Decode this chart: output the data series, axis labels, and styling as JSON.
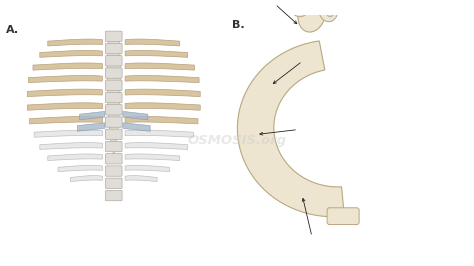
{
  "background_color": "#ffffff",
  "label_A": "A.",
  "label_B": "B.",
  "label_fontsize": 8,
  "watermark": "OSMOSIS.org",
  "watermark_color": "#cccccc",
  "watermark_alpha": 0.45,
  "bone_tan": "#d9c4a0",
  "bone_tan_edge": "#b8a080",
  "bone_white": "#e8e8e8",
  "bone_white_edge": "#c0c0c0",
  "bone_light": "#ede0c8",
  "bone_light_edge": "#c8b090",
  "spine_fill": "#e0ddd8",
  "spine_edge": "#b0aaa0",
  "sternum_fill": "#e2ddd6",
  "sternum_edge": "#b5b0a8",
  "cart_blue": "#aabccc",
  "cart_blue_edge": "#8090a8",
  "ann_color": "#222222",
  "rib_B_fill": "#ede5d0",
  "rib_B_edge": "#b8a880",
  "small_facet": "#c8d8e4"
}
